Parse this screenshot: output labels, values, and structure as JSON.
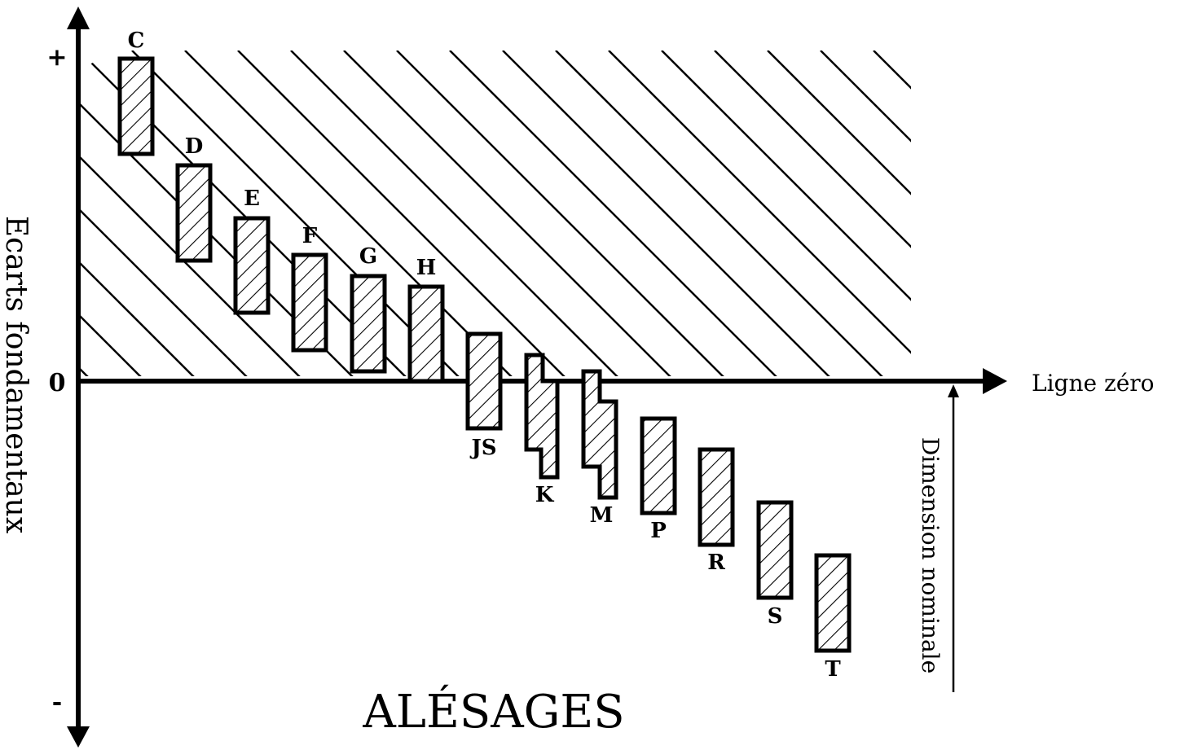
{
  "title": "ALÉSAGES",
  "y_axis": {
    "label": "Ecarts fondamentaux",
    "plus": "+",
    "zero": "0",
    "minus": "-"
  },
  "zero_line_label": "Ligne zéro",
  "nominal_label": "Dimension nominale",
  "zones": [
    {
      "label": "C",
      "shape": "rect"
    },
    {
      "label": "D",
      "shape": "rect"
    },
    {
      "label": "E",
      "shape": "rect"
    },
    {
      "label": "F",
      "shape": "rect"
    },
    {
      "label": "G",
      "shape": "rect"
    },
    {
      "label": "H",
      "shape": "rect"
    },
    {
      "label": "JS",
      "shape": "rect"
    },
    {
      "label": "K",
      "shape": "stepped"
    },
    {
      "label": "M",
      "shape": "stepped"
    },
    {
      "label": "P",
      "shape": "rect"
    },
    {
      "label": "R",
      "shape": "rect"
    },
    {
      "label": "S",
      "shape": "rect"
    },
    {
      "label": "T",
      "shape": "rect"
    }
  ]
}
